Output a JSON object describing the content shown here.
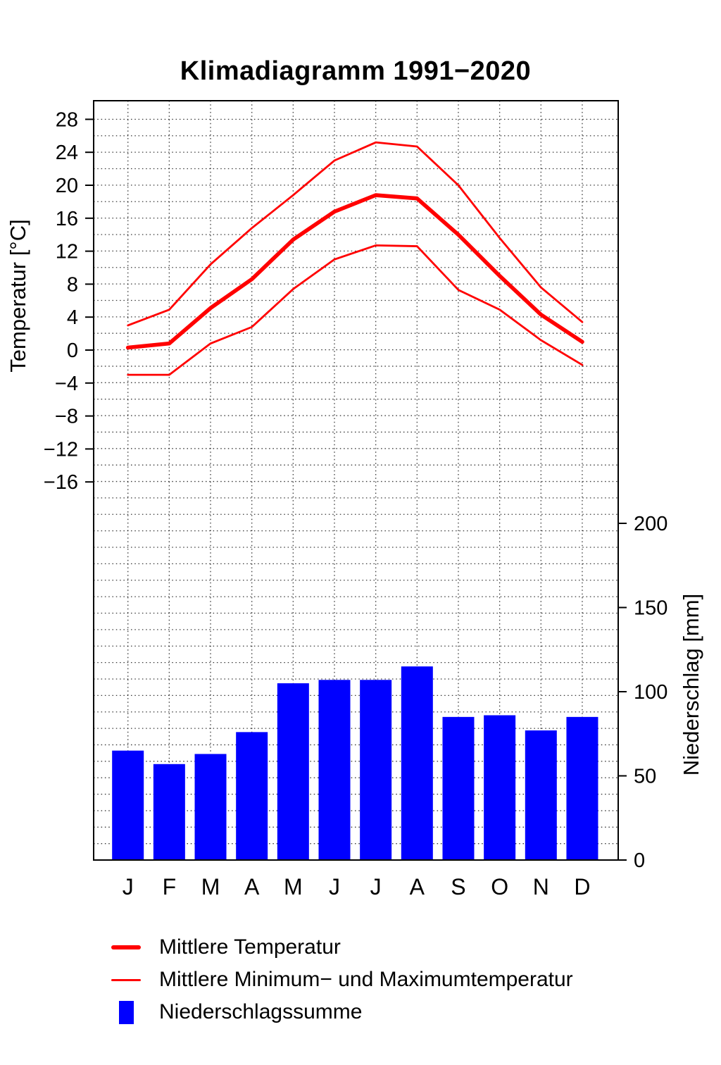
{
  "chart_data": {
    "type": "climate",
    "title": "Klimadiagramm 1991−2020",
    "months": [
      "J",
      "F",
      "M",
      "A",
      "M",
      "J",
      "J",
      "A",
      "S",
      "O",
      "N",
      "D"
    ],
    "temperature": {
      "axis_label": "Temperatur [°C]",
      "unit": "°C",
      "ticks": [
        28,
        24,
        20,
        16,
        12,
        8,
        4,
        0,
        -4,
        -8,
        -12,
        -16
      ],
      "color": "#ff0000",
      "series": [
        {
          "name": "Mittlere Temperatur",
          "style": "thick",
          "values": [
            0.3,
            0.8,
            5.1,
            8.6,
            13.4,
            16.8,
            18.8,
            18.4,
            14.0,
            9.0,
            4.3,
            1.0
          ]
        },
        {
          "name": "Mittlere Maximumtemperatur",
          "style": "thin",
          "values": [
            3.0,
            4.9,
            10.4,
            14.8,
            18.8,
            23.0,
            25.2,
            24.7,
            20.0,
            13.6,
            7.6,
            3.4
          ]
        },
        {
          "name": "Mittlere Minimumtemperatur",
          "style": "thin",
          "values": [
            -3.0,
            -3.0,
            0.8,
            2.8,
            7.4,
            11.0,
            12.7,
            12.6,
            7.3,
            4.9,
            1.2,
            -1.8
          ]
        }
      ]
    },
    "precipitation": {
      "axis_label": "Niederschlag [mm]",
      "unit": "mm",
      "ticks": [
        0,
        50,
        100,
        150,
        200
      ],
      "color": "#0000ff",
      "name": "Niederschlagssumme",
      "values": [
        65,
        57,
        63,
        76,
        105,
        107,
        107,
        115,
        85,
        86,
        77,
        85
      ]
    },
    "legend": [
      {
        "label": "Mittlere Temperatur",
        "swatch": "thick-red-line"
      },
      {
        "label": "Mittlere Minimum− und Maximumtemperatur",
        "swatch": "thin-red-line"
      },
      {
        "label": "Niederschlagssumme",
        "swatch": "blue-rect"
      }
    ],
    "grid": "dotted",
    "layout": {
      "temp_axis_side": "left",
      "precip_axis_side": "right",
      "legend_position": "below"
    }
  }
}
